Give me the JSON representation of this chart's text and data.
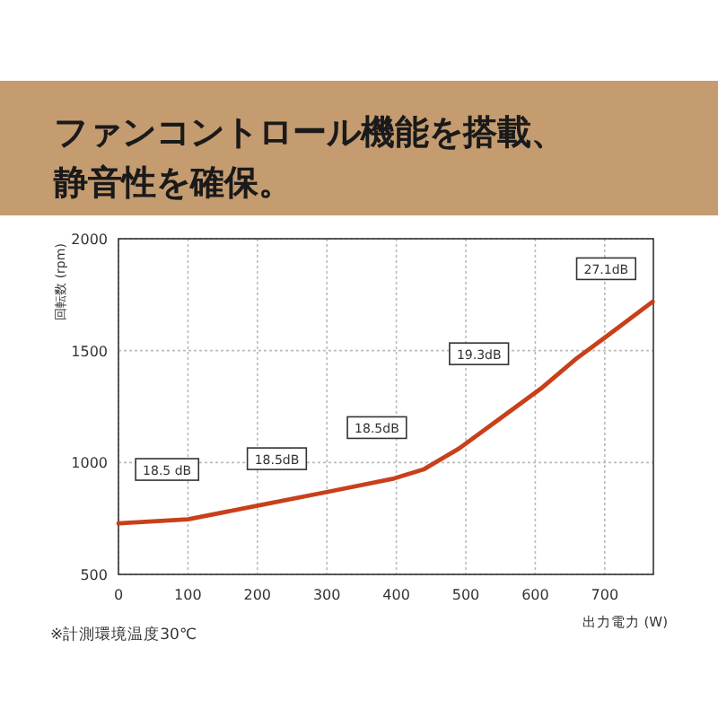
{
  "chart_data": {
    "type": "line",
    "title": "ファンコントロール機能を搭載、",
    "subtitle": "静音性を確保。",
    "xlabel": "出力電力 (W)",
    "ylabel": "回転数 (rpm)",
    "x": [
      0,
      100,
      202,
      303,
      397,
      439,
      490,
      549,
      608,
      659,
      700,
      769
    ],
    "series": [
      {
        "color": "#c8401a",
        "values": [
          728,
          746,
          808,
          870,
          929,
          969,
          1062,
          1196,
          1330,
          1464,
          1558,
          1719
        ]
      }
    ],
    "xlim": [
      0,
      770
    ],
    "ylim": [
      500,
      2000
    ],
    "xticks": [
      0,
      100,
      200,
      300,
      400,
      500,
      600,
      700
    ],
    "yticks": [
      500,
      1000,
      1500,
      2000
    ],
    "grid": true,
    "marker": "none",
    "line_style": "solid",
    "annotations": [
      {
        "text": "18.5 dB",
        "x": 70,
        "y": 969
      },
      {
        "text": "18.5dB",
        "x": 228,
        "y": 1017
      },
      {
        "text": "18.5dB",
        "x": 372,
        "y": 1156
      },
      {
        "text": "19.3dB",
        "x": 519,
        "y": 1486
      },
      {
        "text": "27.1dB",
        "x": 702,
        "y": 1866
      },
      "※計測環境温度30℃"
    ]
  }
}
